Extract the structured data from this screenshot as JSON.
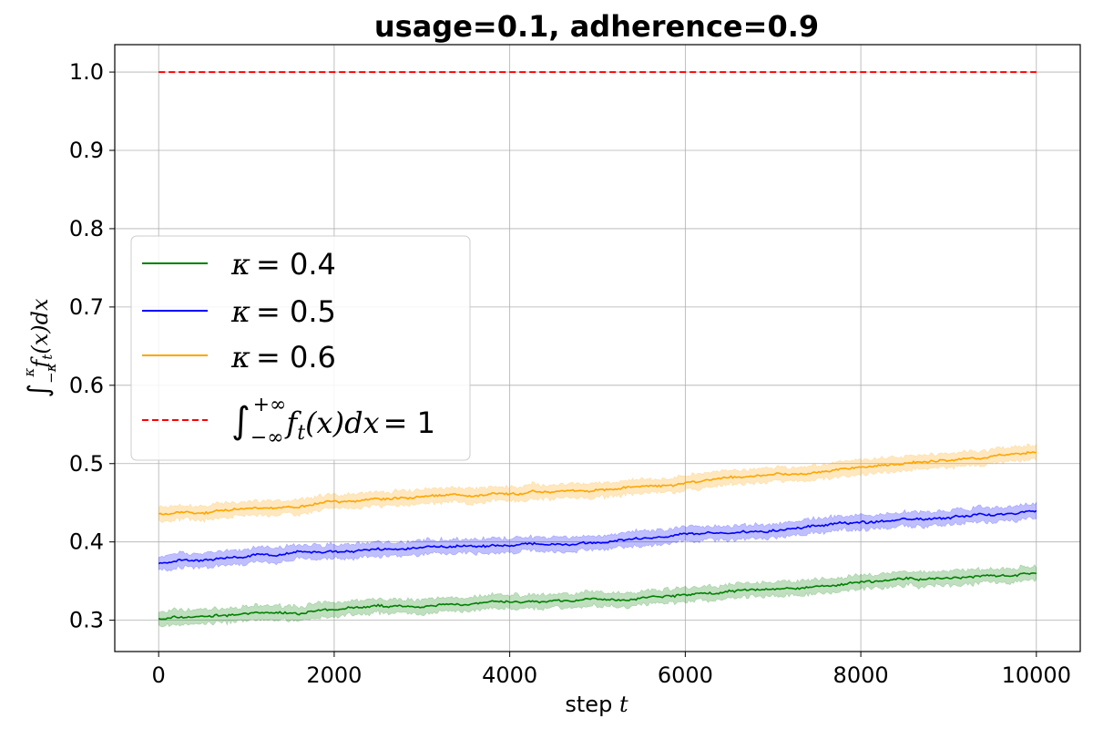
{
  "chart_data": {
    "type": "line",
    "title": "usage=0.1, adherence=0.9",
    "xlabel": "step t",
    "xlabel_text": "step",
    "xlabel_var": "t",
    "ylabel": "∫_{−κ}^{κ} f_t(x)dx",
    "xlim": [
      -500,
      10500
    ],
    "ylim": [
      0.26,
      1.035
    ],
    "x_ticks": [
      0,
      2000,
      4000,
      6000,
      8000,
      10000
    ],
    "x_tick_labels": [
      "0",
      "2000",
      "4000",
      "6000",
      "8000",
      "10000"
    ],
    "y_ticks": [
      0.3,
      0.4,
      0.5,
      0.6,
      0.7,
      0.8,
      0.9,
      1.0
    ],
    "y_tick_labels": [
      "0.3",
      "0.4",
      "0.5",
      "0.6",
      "0.7",
      "0.8",
      "0.9",
      "1.0"
    ],
    "grid": true,
    "legend_position": "center-left",
    "x": [
      0,
      1000,
      2000,
      3000,
      4000,
      5000,
      6000,
      7000,
      8000,
      9000,
      10000
    ],
    "series": [
      {
        "name": "κ =  0.4",
        "name_symbol": "κ",
        "name_value": "=  0.4",
        "color": "#008000",
        "style": "solid",
        "values": [
          0.302,
          0.308,
          0.313,
          0.318,
          0.322,
          0.326,
          0.332,
          0.339,
          0.347,
          0.354,
          0.36
        ],
        "band": 0.009
      },
      {
        "name": "κ =  0.5",
        "name_symbol": "κ",
        "name_value": "=  0.5",
        "color": "#0000ff",
        "style": "solid",
        "values": [
          0.373,
          0.38,
          0.387,
          0.392,
          0.396,
          0.4,
          0.408,
          0.416,
          0.425,
          0.432,
          0.44
        ],
        "band": 0.009
      },
      {
        "name": "κ =  0.6",
        "name_symbol": "κ",
        "name_value": "=  0.6",
        "color": "#ffa500",
        "style": "solid",
        "values": [
          0.435,
          0.442,
          0.45,
          0.457,
          0.462,
          0.467,
          0.476,
          0.486,
          0.496,
          0.504,
          0.513
        ],
        "band": 0.009
      },
      {
        "name": "∫_{−∞}^{+∞} f_t(x)dx = 1",
        "name_value": "= 1",
        "color": "#ff0000",
        "style": "dashed",
        "values": [
          1.0,
          1.0,
          1.0,
          1.0,
          1.0,
          1.0,
          1.0,
          1.0,
          1.0,
          1.0,
          1.0
        ]
      }
    ]
  }
}
